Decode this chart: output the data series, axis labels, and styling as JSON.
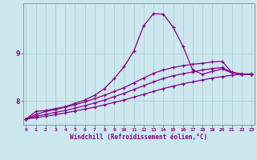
{
  "x_ticks": [
    0,
    1,
    2,
    3,
    4,
    5,
    6,
    7,
    8,
    9,
    10,
    11,
    12,
    13,
    14,
    15,
    16,
    17,
    18,
    19,
    20,
    21,
    22,
    23
  ],
  "xlabel": "Windchill (Refroidissement éolien,°C)",
  "ylabel_ticks": [
    8,
    9
  ],
  "background_color": "#cce8ee",
  "grid_color": "#aacccc",
  "line_color": "#880088",
  "lines": [
    {
      "x": [
        0,
        1,
        2,
        3,
        4,
        5,
        6,
        7,
        8,
        9,
        10,
        11,
        12,
        13,
        14,
        15,
        16,
        17,
        18,
        19,
        20,
        21,
        22,
        23
      ],
      "y": [
        7.62,
        7.78,
        7.8,
        7.84,
        7.88,
        7.95,
        8.02,
        8.12,
        8.26,
        8.47,
        8.72,
        9.05,
        9.58,
        9.83,
        9.82,
        9.55,
        9.15,
        8.65,
        8.56,
        8.62,
        8.67,
        8.59,
        8.56,
        8.56
      ]
    },
    {
      "x": [
        0,
        1,
        2,
        3,
        4,
        5,
        6,
        7,
        8,
        9,
        10,
        11,
        12,
        13,
        14,
        15,
        16,
        17,
        18,
        19,
        20,
        21,
        22,
        23
      ],
      "y": [
        7.62,
        7.72,
        7.78,
        7.82,
        7.87,
        7.92,
        7.98,
        8.05,
        8.12,
        8.2,
        8.28,
        8.38,
        8.48,
        8.58,
        8.65,
        8.7,
        8.74,
        8.77,
        8.79,
        8.82,
        8.83,
        8.6,
        8.56,
        8.56
      ]
    },
    {
      "x": [
        0,
        1,
        2,
        3,
        4,
        5,
        6,
        7,
        8,
        9,
        10,
        11,
        12,
        13,
        14,
        15,
        16,
        17,
        18,
        19,
        20,
        21,
        22,
        23
      ],
      "y": [
        7.62,
        7.68,
        7.72,
        7.76,
        7.8,
        7.85,
        7.9,
        7.96,
        8.02,
        8.09,
        8.16,
        8.24,
        8.32,
        8.4,
        8.47,
        8.53,
        8.57,
        8.61,
        8.65,
        8.68,
        8.7,
        8.6,
        8.57,
        8.56
      ]
    },
    {
      "x": [
        0,
        1,
        2,
        3,
        4,
        5,
        6,
        7,
        8,
        9,
        10,
        11,
        12,
        13,
        14,
        15,
        16,
        17,
        18,
        19,
        20,
        21,
        22,
        23
      ],
      "y": [
        7.62,
        7.65,
        7.68,
        7.71,
        7.75,
        7.79,
        7.83,
        7.87,
        7.92,
        7.97,
        8.02,
        8.08,
        8.14,
        8.2,
        8.26,
        8.31,
        8.36,
        8.4,
        8.44,
        8.48,
        8.51,
        8.54,
        8.56,
        8.57
      ]
    }
  ],
  "ylim": [
    7.5,
    10.05
  ],
  "xlim": [
    -0.3,
    23.3
  ],
  "figsize": [
    3.2,
    2.0
  ],
  "dpi": 100
}
